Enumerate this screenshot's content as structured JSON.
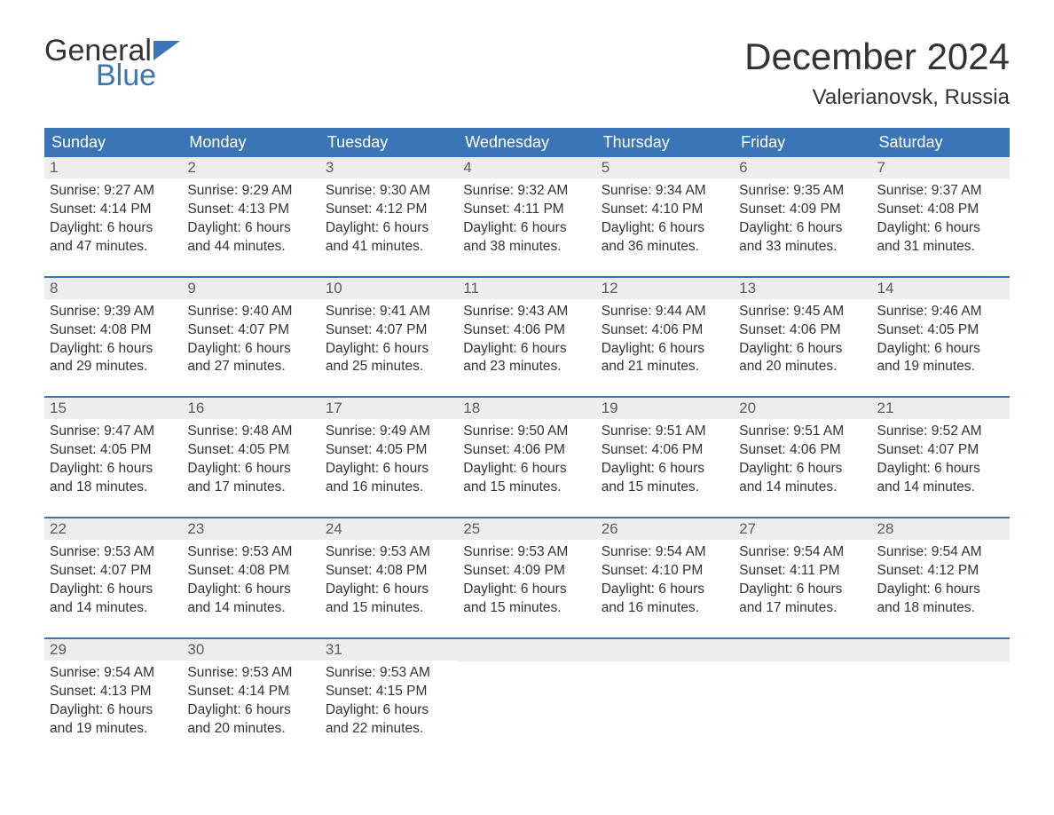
{
  "brand": {
    "part1": "General",
    "part2": "Blue",
    "flag_color": "#3a75b5",
    "text_dark": "#333333"
  },
  "title": "December 2024",
  "location": "Valerianovsk, Russia",
  "colors": {
    "header_bg": "#3a75b5",
    "header_text": "#ffffff",
    "daynum_bg": "#ededed",
    "daynum_text": "#5f5f5f",
    "body_text": "#333333",
    "week_border": "#3a75b5",
    "page_bg": "#ffffff"
  },
  "typography": {
    "month_title_fontsize": 42,
    "location_fontsize": 24,
    "dayheader_fontsize": 18,
    "daynum_fontsize": 17,
    "cell_fontsize": 15.5
  },
  "day_names": [
    "Sunday",
    "Monday",
    "Tuesday",
    "Wednesday",
    "Thursday",
    "Friday",
    "Saturday"
  ],
  "weeks": [
    [
      {
        "n": "1",
        "sunrise": "9:27 AM",
        "sunset": "4:14 PM",
        "daylight": "6 hours and 47 minutes."
      },
      {
        "n": "2",
        "sunrise": "9:29 AM",
        "sunset": "4:13 PM",
        "daylight": "6 hours and 44 minutes."
      },
      {
        "n": "3",
        "sunrise": "9:30 AM",
        "sunset": "4:12 PM",
        "daylight": "6 hours and 41 minutes."
      },
      {
        "n": "4",
        "sunrise": "9:32 AM",
        "sunset": "4:11 PM",
        "daylight": "6 hours and 38 minutes."
      },
      {
        "n": "5",
        "sunrise": "9:34 AM",
        "sunset": "4:10 PM",
        "daylight": "6 hours and 36 minutes."
      },
      {
        "n": "6",
        "sunrise": "9:35 AM",
        "sunset": "4:09 PM",
        "daylight": "6 hours and 33 minutes."
      },
      {
        "n": "7",
        "sunrise": "9:37 AM",
        "sunset": "4:08 PM",
        "daylight": "6 hours and 31 minutes."
      }
    ],
    [
      {
        "n": "8",
        "sunrise": "9:39 AM",
        "sunset": "4:08 PM",
        "daylight": "6 hours and 29 minutes."
      },
      {
        "n": "9",
        "sunrise": "9:40 AM",
        "sunset": "4:07 PM",
        "daylight": "6 hours and 27 minutes."
      },
      {
        "n": "10",
        "sunrise": "9:41 AM",
        "sunset": "4:07 PM",
        "daylight": "6 hours and 25 minutes."
      },
      {
        "n": "11",
        "sunrise": "9:43 AM",
        "sunset": "4:06 PM",
        "daylight": "6 hours and 23 minutes."
      },
      {
        "n": "12",
        "sunrise": "9:44 AM",
        "sunset": "4:06 PM",
        "daylight": "6 hours and 21 minutes."
      },
      {
        "n": "13",
        "sunrise": "9:45 AM",
        "sunset": "4:06 PM",
        "daylight": "6 hours and 20 minutes."
      },
      {
        "n": "14",
        "sunrise": "9:46 AM",
        "sunset": "4:05 PM",
        "daylight": "6 hours and 19 minutes."
      }
    ],
    [
      {
        "n": "15",
        "sunrise": "9:47 AM",
        "sunset": "4:05 PM",
        "daylight": "6 hours and 18 minutes."
      },
      {
        "n": "16",
        "sunrise": "9:48 AM",
        "sunset": "4:05 PM",
        "daylight": "6 hours and 17 minutes."
      },
      {
        "n": "17",
        "sunrise": "9:49 AM",
        "sunset": "4:05 PM",
        "daylight": "6 hours and 16 minutes."
      },
      {
        "n": "18",
        "sunrise": "9:50 AM",
        "sunset": "4:06 PM",
        "daylight": "6 hours and 15 minutes."
      },
      {
        "n": "19",
        "sunrise": "9:51 AM",
        "sunset": "4:06 PM",
        "daylight": "6 hours and 15 minutes."
      },
      {
        "n": "20",
        "sunrise": "9:51 AM",
        "sunset": "4:06 PM",
        "daylight": "6 hours and 14 minutes."
      },
      {
        "n": "21",
        "sunrise": "9:52 AM",
        "sunset": "4:07 PM",
        "daylight": "6 hours and 14 minutes."
      }
    ],
    [
      {
        "n": "22",
        "sunrise": "9:53 AM",
        "sunset": "4:07 PM",
        "daylight": "6 hours and 14 minutes."
      },
      {
        "n": "23",
        "sunrise": "9:53 AM",
        "sunset": "4:08 PM",
        "daylight": "6 hours and 14 minutes."
      },
      {
        "n": "24",
        "sunrise": "9:53 AM",
        "sunset": "4:08 PM",
        "daylight": "6 hours and 15 minutes."
      },
      {
        "n": "25",
        "sunrise": "9:53 AM",
        "sunset": "4:09 PM",
        "daylight": "6 hours and 15 minutes."
      },
      {
        "n": "26",
        "sunrise": "9:54 AM",
        "sunset": "4:10 PM",
        "daylight": "6 hours and 16 minutes."
      },
      {
        "n": "27",
        "sunrise": "9:54 AM",
        "sunset": "4:11 PM",
        "daylight": "6 hours and 17 minutes."
      },
      {
        "n": "28",
        "sunrise": "9:54 AM",
        "sunset": "4:12 PM",
        "daylight": "6 hours and 18 minutes."
      }
    ],
    [
      {
        "n": "29",
        "sunrise": "9:54 AM",
        "sunset": "4:13 PM",
        "daylight": "6 hours and 19 minutes."
      },
      {
        "n": "30",
        "sunrise": "9:53 AM",
        "sunset": "4:14 PM",
        "daylight": "6 hours and 20 minutes."
      },
      {
        "n": "31",
        "sunrise": "9:53 AM",
        "sunset": "4:15 PM",
        "daylight": "6 hours and 22 minutes."
      },
      null,
      null,
      null,
      null
    ]
  ],
  "labels": {
    "sunrise": "Sunrise: ",
    "sunset": "Sunset: ",
    "daylight": "Daylight: "
  }
}
